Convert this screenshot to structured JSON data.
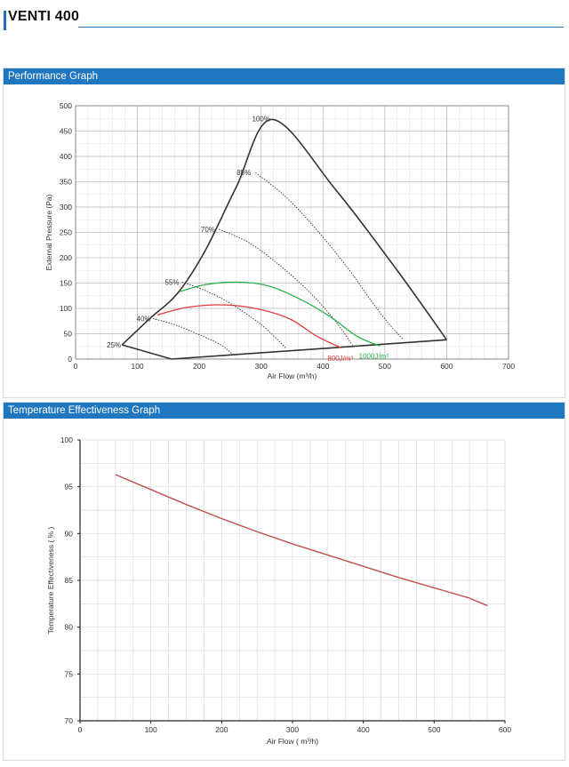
{
  "page": {
    "title": "VENTI 400",
    "accent_color": "#1f77bf"
  },
  "sections": {
    "performance_title": "Performance Graph",
    "temperature_title": "Temperature Effectiveness Graph"
  },
  "chart_data": [
    {
      "type": "line",
      "title": "Performance Graph",
      "xlabel": "Air Flow (m³/h)",
      "ylabel": "External Pressure (Pa)",
      "xlim": [
        0,
        700
      ],
      "ylim": [
        0,
        500
      ],
      "xticks": [
        0,
        100,
        200,
        300,
        400,
        500,
        600,
        700
      ],
      "yticks": [
        0,
        50,
        100,
        150,
        200,
        250,
        300,
        350,
        400,
        450,
        500
      ],
      "grid": true,
      "envelope": {
        "points": [
          [
            75,
            28
          ],
          [
            155,
            0
          ],
          [
            600,
            38
          ],
          [
            318,
            473
          ]
        ],
        "color": "#333333"
      },
      "series": [
        {
          "name": "100%",
          "points": [
            [
              75,
              28
            ],
            [
              120,
              80
            ],
            [
              165,
              130
            ],
            [
              210,
              215
            ],
            [
              260,
              340
            ],
            [
              318,
              473
            ],
            [
              420,
              335
            ],
            [
              520,
              175
            ],
            [
              600,
              38
            ]
          ],
          "style": "solid",
          "label_at": [
            300,
            475
          ]
        },
        {
          "name": "85%",
          "points": [
            [
              291,
              368
            ],
            [
              340,
              320
            ],
            [
              390,
              255
            ],
            [
              440,
              180
            ],
            [
              475,
              120
            ],
            [
              505,
              72
            ],
            [
              530,
              38
            ]
          ],
          "style": "dotted",
          "label_at": [
            272,
            368
          ]
        },
        {
          "name": "70%",
          "points": [
            [
              232,
              256
            ],
            [
              280,
              230
            ],
            [
              330,
              185
            ],
            [
              380,
              130
            ],
            [
              420,
              75
            ],
            [
              448,
              27
            ]
          ],
          "style": "dotted",
          "label_at": [
            214,
            256
          ]
        },
        {
          "name": "55%",
          "points": [
            [
              172,
              152
            ],
            [
              210,
              135
            ],
            [
              250,
              110
            ],
            [
              300,
              68
            ],
            [
              340,
              22
            ]
          ],
          "style": "dotted",
          "label_at": [
            156,
            152
          ]
        },
        {
          "name": "40%",
          "points": [
            [
              125,
              80
            ],
            [
              160,
              68
            ],
            [
              200,
              48
            ],
            [
              235,
              28
            ],
            [
              255,
              8
            ]
          ],
          "style": "dotted",
          "label_at": [
            110,
            80
          ]
        },
        {
          "name": "25%",
          "points": [
            [
              75,
              28
            ],
            [
              78,
              28
            ]
          ],
          "style": "dotted",
          "label_at": [
            62,
            28
          ]
        },
        {
          "name": "800J/m³",
          "points": [
            [
              132,
              87
            ],
            [
              180,
              102
            ],
            [
              235,
              107
            ],
            [
              290,
              100
            ],
            [
              345,
              80
            ],
            [
              390,
              45
            ],
            [
              430,
              22
            ]
          ],
          "style": "solid",
          "color": "#e03c3c",
          "label_at": [
            428,
            2
          ]
        },
        {
          "name": "1000J/m³",
          "points": [
            [
              168,
              133
            ],
            [
              210,
              147
            ],
            [
              260,
              152
            ],
            [
              310,
              145
            ],
            [
              360,
              120
            ],
            [
              410,
              85
            ],
            [
              455,
              45
            ],
            [
              492,
              26
            ]
          ],
          "style": "solid",
          "color": "#2bb34a",
          "label_at": [
            482,
            6
          ]
        }
      ]
    },
    {
      "type": "line",
      "title": "Temperature Effectiveness Graph",
      "xlabel": "Air Flow ( m³/h)",
      "ylabel": "Temperature Effectiveness ( % )",
      "xlim": [
        0,
        600
      ],
      "ylim": [
        70,
        100
      ],
      "xticks": [
        0,
        100,
        200,
        300,
        400,
        500,
        600
      ],
      "yticks": [
        70,
        75,
        80,
        85,
        90,
        95,
        100
      ],
      "grid": true,
      "series": [
        {
          "name": "",
          "color": "#c0504d",
          "x": [
            50,
            100,
            150,
            200,
            250,
            300,
            350,
            400,
            450,
            500,
            550,
            575
          ],
          "y": [
            96.3,
            94.7,
            93.1,
            91.6,
            90.2,
            88.9,
            87.7,
            86.5,
            85.3,
            84.2,
            83.1,
            82.3
          ]
        }
      ]
    }
  ]
}
